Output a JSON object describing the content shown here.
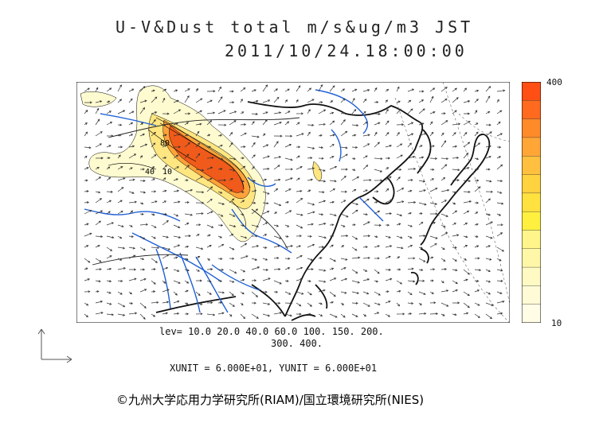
{
  "header": {
    "title_line1": "U-V&Dust total m/s&ug/m3 JST",
    "title_line2": "2011/10/24.18:00:00"
  },
  "map": {
    "contour_labels": [
      "80",
      "40",
      "10"
    ],
    "colors": {
      "coast": "#111111",
      "river": "#1f5fd6",
      "border": "#222222",
      "vector": "#333333",
      "dust_low": "#fffbd0",
      "dust_mid": "#ffe680",
      "dust_high": "#ffa23a",
      "dust_max": "#f05a1a"
    }
  },
  "legend": {
    "levels": "lev= 10.0 20.0 40.0 60.0 100. 150. 200.",
    "levels_cont": "300. 400.",
    "units": "XUNIT = 6.000E+01, YUNIT = 6.000E+01"
  },
  "colorbar": {
    "max_label": "400",
    "min_label": "10",
    "colors": [
      "#ff4f14",
      "#ff6a1e",
      "#ff8a2a",
      "#ffa637",
      "#ffbf3f",
      "#ffd23f",
      "#ffe23f",
      "#fff03f",
      "#fff58a",
      "#fff7a8",
      "#fff9c4",
      "#fffbd6",
      "#fffde6"
    ]
  },
  "footer": {
    "credit": "©九州大学応用力学研究所(RIAM)/国立環境研究所(NIES)"
  }
}
